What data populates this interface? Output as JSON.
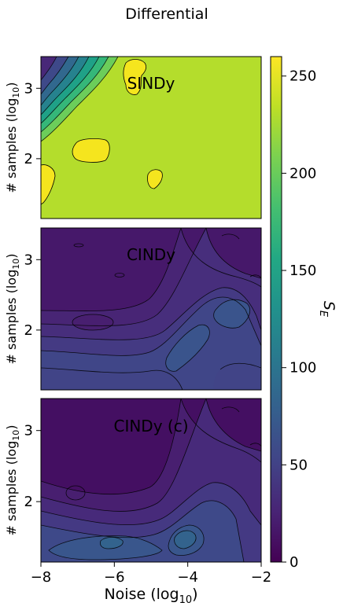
{
  "chart_data": {
    "type": "heatmap",
    "title": "Differential",
    "xlabel": "Noise (log",
    "xlabel_sub": "10",
    "xlabel_close": ")",
    "ylabel": "# samples (log",
    "ylabel_sub": "10",
    "ylabel_close": ")",
    "xlim": [
      -8,
      -2
    ],
    "ylim": [
      1.15,
      3.45
    ],
    "xticks": [
      -8,
      -6,
      -4,
      -2
    ],
    "xtick_labels": [
      "−8",
      "−6",
      "−4",
      "−2"
    ],
    "yticks": [
      2,
      3
    ],
    "ytick_labels": [
      "2",
      "3"
    ],
    "colorbar": {
      "label": "S",
      "label_sub": "E",
      "range": [
        0,
        260
      ],
      "ticks": [
        0,
        50,
        100,
        150,
        200,
        250
      ],
      "tick_labels": [
        "0",
        "50",
        "100",
        "150",
        "200",
        "250"
      ],
      "colormap": "viridis"
    },
    "panels": [
      {
        "name": "SINDy",
        "background_value": 225,
        "features": [
          {
            "kind": "ridge",
            "x": -8.0,
            "y": 3.45,
            "value": 25,
            "spread_x": 1.6,
            "spread_y": 1.1
          },
          {
            "kind": "peak",
            "x": -6.7,
            "y": 2.08,
            "value": 258
          },
          {
            "kind": "peak",
            "x": -5.4,
            "y": 3.32,
            "value": 258
          },
          {
            "kind": "peak",
            "x": -7.9,
            "y": 1.6,
            "value": 255
          },
          {
            "kind": "peak",
            "x": -4.85,
            "y": 1.7,
            "value": 252
          }
        ]
      },
      {
        "name": "CINDy",
        "background_value": 15,
        "features": [
          {
            "kind": "ridge",
            "x": -4.5,
            "y": 1.3,
            "value": 60
          },
          {
            "kind": "peak",
            "x": -4.0,
            "y": 2.0,
            "value": 65
          },
          {
            "kind": "peak",
            "x": -2.3,
            "y": 1.4,
            "value": 45
          }
        ]
      },
      {
        "name": "CINDy (c)",
        "background_value": 10,
        "features": [
          {
            "kind": "peak",
            "x": -6.1,
            "y": 1.38,
            "value": 75
          },
          {
            "kind": "peak",
            "x": -4.1,
            "y": 1.52,
            "value": 80
          },
          {
            "kind": "ridge",
            "x": -5.2,
            "y": 1.5,
            "value": 55
          }
        ]
      }
    ]
  }
}
